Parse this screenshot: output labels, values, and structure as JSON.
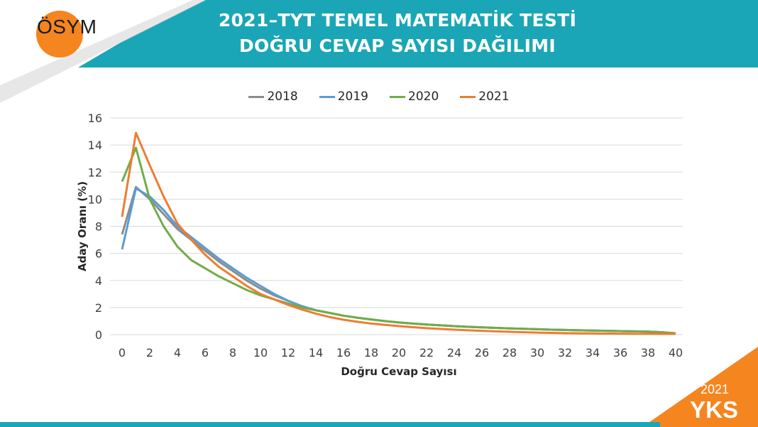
{
  "logo": {
    "text": "ÖSYM"
  },
  "header": {
    "title_line1": "2021–TYT TEMEL MATEMATİK TESTİ",
    "title_line2": "DOĞRU CEVAP SAYISI DAĞILIMI"
  },
  "brand": {
    "year": "2021",
    "name": "YKS"
  },
  "colors": {
    "teal": "#1aa6b7",
    "orange": "#f5851f",
    "grid": "#d9d9d9"
  },
  "chart_data": {
    "type": "line",
    "xlabel": "Doğru Cevap Sayısı",
    "ylabel": "Aday Oranı (%)",
    "xlim": [
      0,
      40
    ],
    "ylim": [
      0,
      16
    ],
    "x_ticks": [
      0,
      2,
      4,
      6,
      8,
      10,
      12,
      14,
      16,
      18,
      20,
      22,
      24,
      26,
      28,
      30,
      32,
      34,
      36,
      38,
      40
    ],
    "y_ticks": [
      0,
      2,
      4,
      6,
      8,
      10,
      12,
      14,
      16
    ],
    "grid": "horizontal",
    "legend": "top-center",
    "x": [
      0,
      1,
      2,
      3,
      4,
      5,
      6,
      7,
      8,
      9,
      10,
      11,
      12,
      13,
      14,
      15,
      16,
      17,
      18,
      19,
      20,
      21,
      22,
      23,
      24,
      25,
      26,
      27,
      28,
      29,
      30,
      31,
      32,
      33,
      34,
      35,
      36,
      37,
      38,
      39,
      40
    ],
    "series": [
      {
        "name": "2018",
        "color": "#8c8c8c",
        "values": [
          7.4,
          10.9,
          10.0,
          8.9,
          7.8,
          7.0,
          6.2,
          5.4,
          4.7,
          4.0,
          3.4,
          2.9,
          2.5,
          2.1,
          1.8,
          1.6,
          1.4,
          1.25,
          1.12,
          1.0,
          0.9,
          0.82,
          0.75,
          0.69,
          0.63,
          0.58,
          0.54,
          0.5,
          0.46,
          0.43,
          0.4,
          0.37,
          0.35,
          0.32,
          0.3,
          0.28,
          0.26,
          0.24,
          0.22,
          0.18,
          0.1
        ]
      },
      {
        "name": "2019",
        "color": "#5b9bd5",
        "values": [
          6.3,
          10.8,
          10.2,
          9.2,
          8.0,
          7.2,
          6.4,
          5.6,
          4.9,
          4.2,
          3.6,
          3.0,
          2.5,
          2.1,
          1.8,
          1.6,
          1.4,
          1.25,
          1.12,
          1.0,
          0.9,
          0.82,
          0.75,
          0.69,
          0.63,
          0.58,
          0.54,
          0.5,
          0.46,
          0.43,
          0.4,
          0.37,
          0.35,
          0.32,
          0.3,
          0.28,
          0.26,
          0.24,
          0.22,
          0.18,
          0.1
        ]
      },
      {
        "name": "2020",
        "color": "#70ad47",
        "values": [
          11.3,
          13.8,
          10.0,
          8.0,
          6.5,
          5.5,
          4.9,
          4.3,
          3.8,
          3.3,
          2.9,
          2.6,
          2.3,
          2.0,
          1.8,
          1.6,
          1.4,
          1.25,
          1.12,
          1.0,
          0.9,
          0.82,
          0.75,
          0.69,
          0.63,
          0.58,
          0.54,
          0.5,
          0.46,
          0.43,
          0.4,
          0.37,
          0.35,
          0.32,
          0.3,
          0.28,
          0.26,
          0.24,
          0.22,
          0.18,
          0.1
        ]
      },
      {
        "name": "2021",
        "color": "#ed7d31",
        "values": [
          8.7,
          14.9,
          12.5,
          10.2,
          8.2,
          7.0,
          5.9,
          5.0,
          4.3,
          3.6,
          3.0,
          2.6,
          2.2,
          1.85,
          1.55,
          1.3,
          1.1,
          0.95,
          0.82,
          0.72,
          0.63,
          0.55,
          0.48,
          0.42,
          0.37,
          0.32,
          0.28,
          0.24,
          0.21,
          0.18,
          0.15,
          0.13,
          0.11,
          0.1,
          0.09,
          0.08,
          0.07,
          0.06,
          0.06,
          0.05,
          0.05
        ]
      }
    ]
  }
}
